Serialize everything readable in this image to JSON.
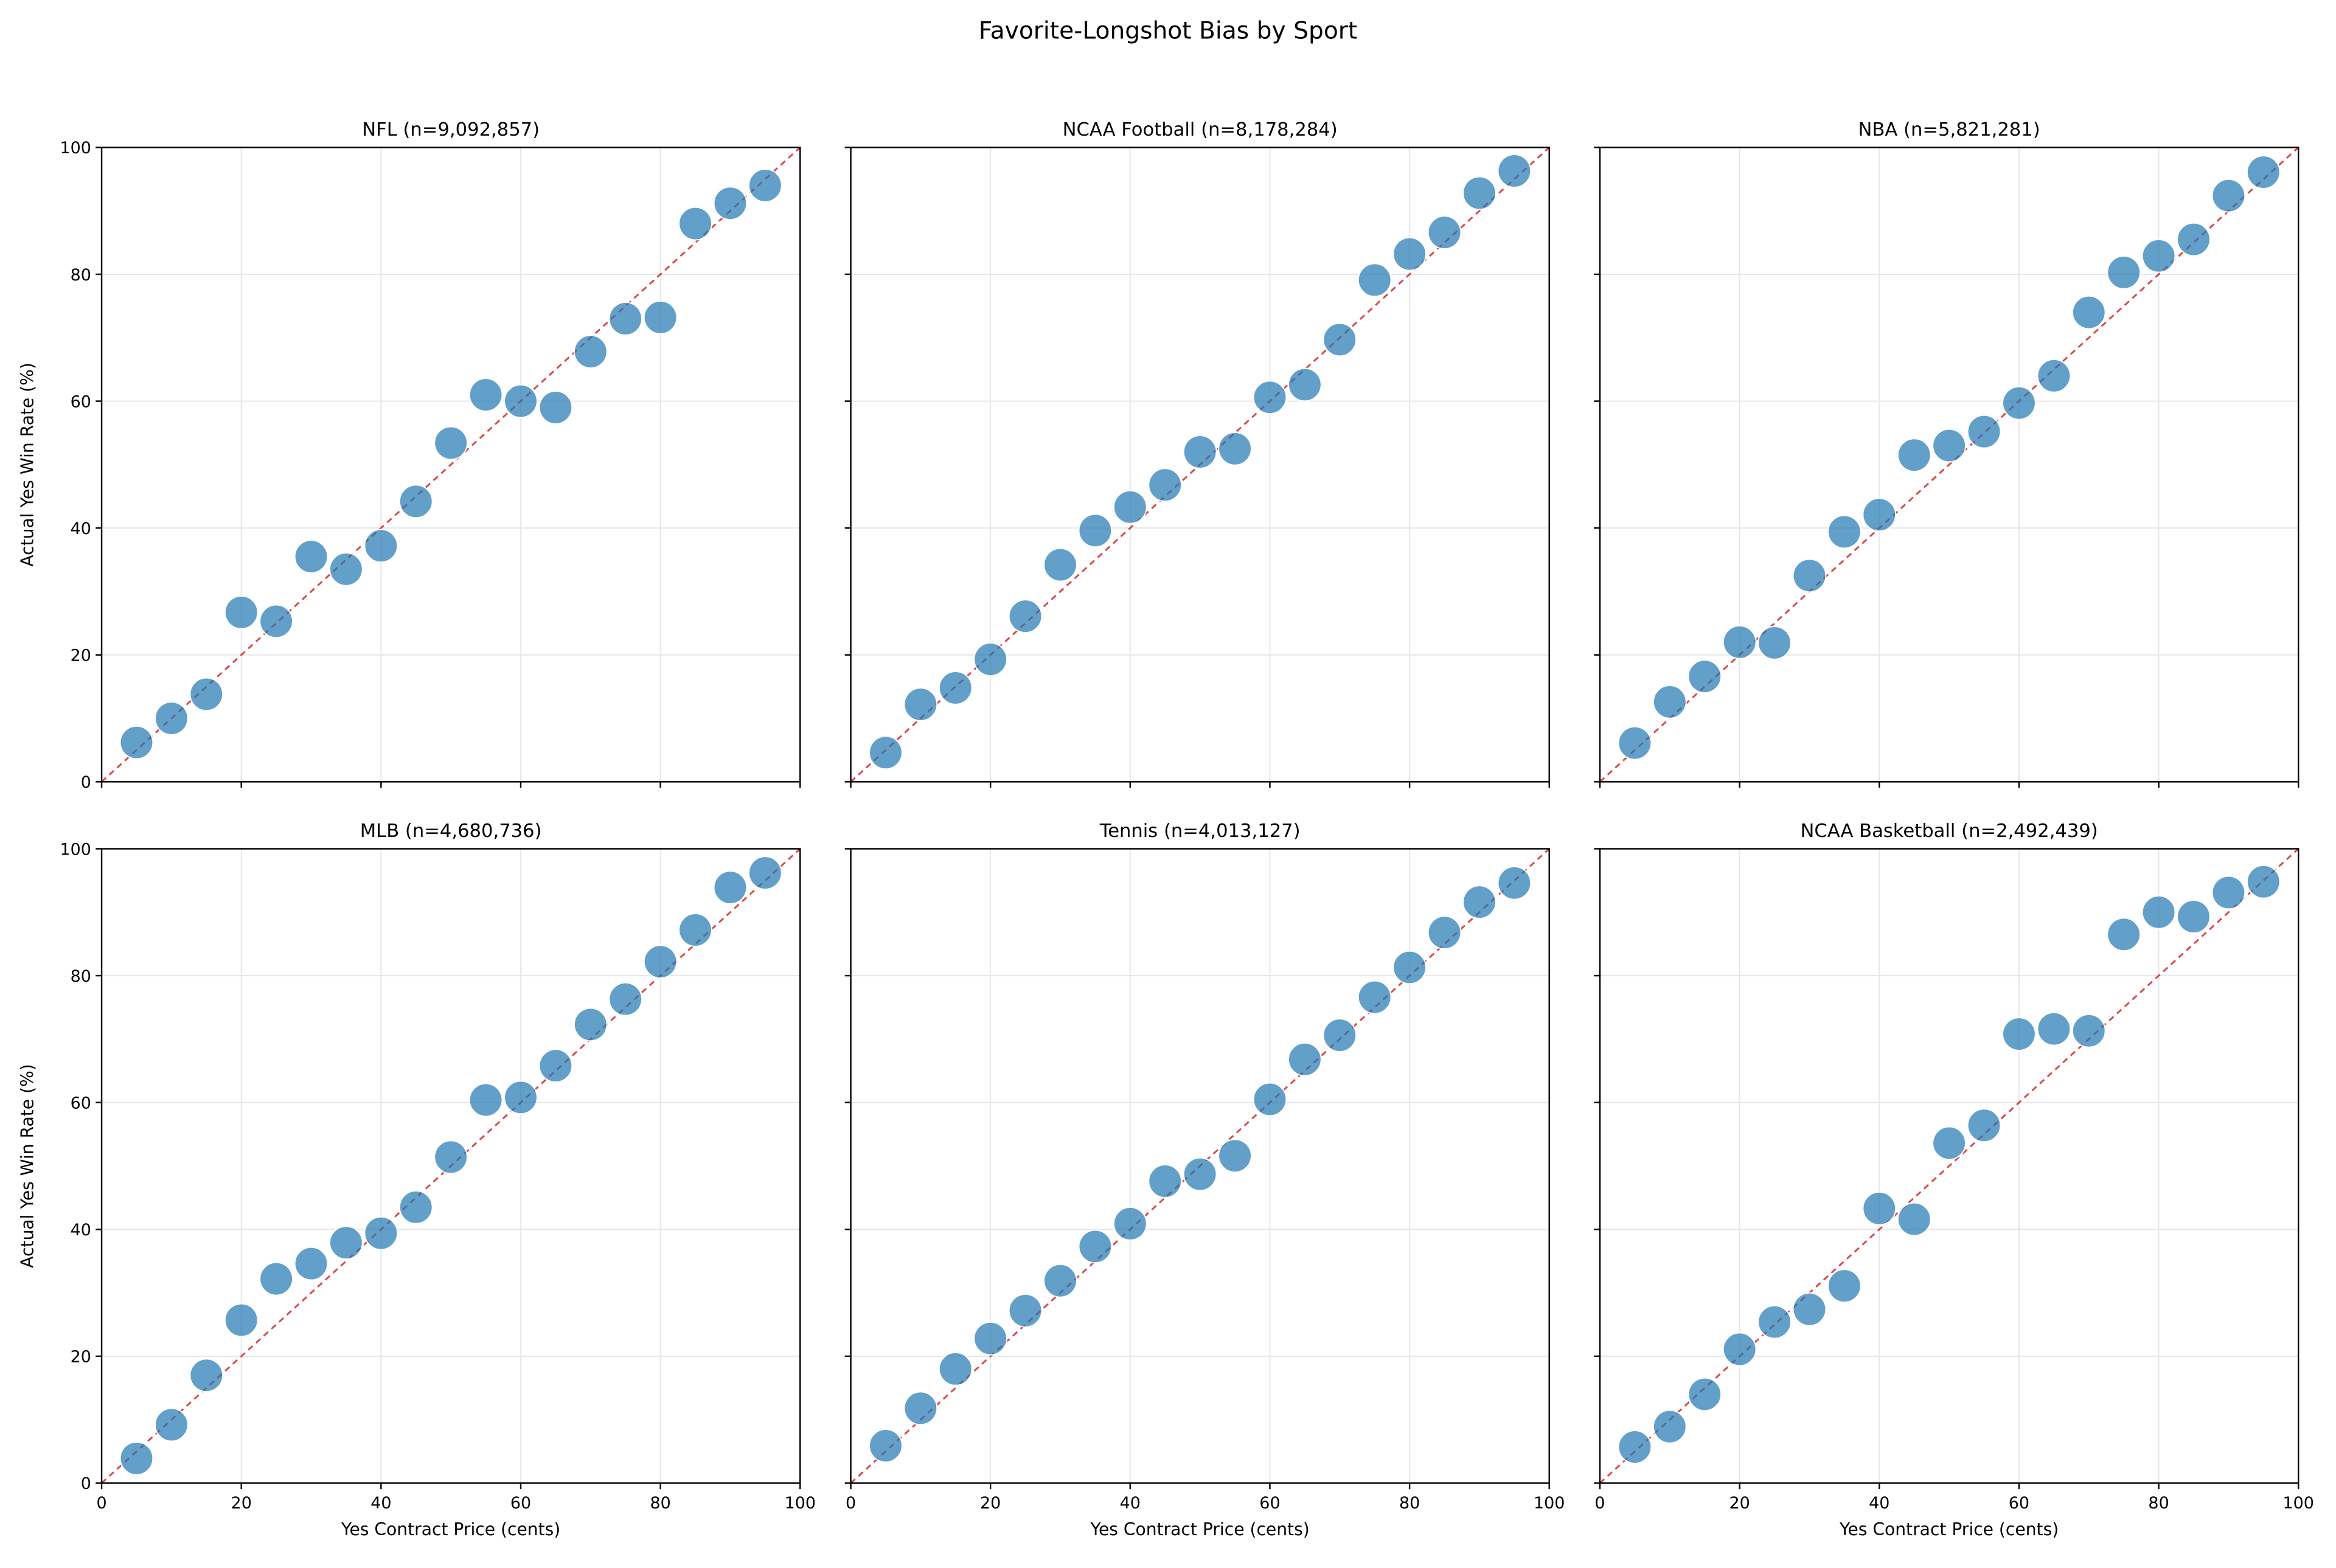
{
  "chart_data": {
    "title": "Favorite-Longshot Bias by Sport",
    "type": "scatter",
    "xlabel": "Yes Contract Price (cents)",
    "ylabel": "Actual Yes Win Rate (%)",
    "xlim": [
      0,
      100
    ],
    "ylim": [
      0,
      100
    ],
    "xticks": [
      0,
      20,
      40,
      60,
      80,
      100
    ],
    "yticks": [
      0,
      20,
      40,
      60,
      80,
      100
    ],
    "grid": true,
    "reference_line": "y = x (dashed)",
    "colors": {
      "points": "#1f77b4",
      "reference_line": "#d62728"
    },
    "x": [
      5,
      10,
      15,
      20,
      25,
      30,
      35,
      40,
      45,
      50,
      55,
      60,
      65,
      70,
      75,
      80,
      85,
      90,
      95
    ],
    "panels": [
      {
        "title": "NFL  (n=9,092,857)",
        "values": [
          6.2,
          10,
          13.8,
          26.7,
          25.3,
          35.5,
          33.5,
          37.2,
          44.2,
          53.4,
          61,
          60,
          59,
          67.8,
          73,
          73.2,
          88,
          91.2,
          94
        ]
      },
      {
        "title": "NCAA Football  (n=8,178,284)",
        "values": [
          4.6,
          12.2,
          14.8,
          19.3,
          26.1,
          34.2,
          39.6,
          43.3,
          46.8,
          52,
          52.5,
          60.6,
          62.6,
          69.7,
          79.1,
          83.2,
          86.6,
          92.8,
          96.3
        ]
      },
      {
        "title": "NBA  (n=5,821,281)",
        "values": [
          6.1,
          12.6,
          16.6,
          22,
          21.9,
          32.5,
          39.4,
          42.1,
          51.5,
          53,
          55.2,
          59.7,
          64,
          74,
          80.3,
          82.9,
          85.5,
          92.4,
          96.1
        ]
      },
      {
        "title": "MLB  (n=4,680,736)",
        "values": [
          3.9,
          9.2,
          17,
          25.7,
          32.2,
          34.6,
          37.9,
          39.4,
          43.5,
          51.4,
          60.4,
          60.8,
          65.8,
          72.3,
          76.3,
          82.2,
          87.2,
          93.9,
          96.2
        ]
      },
      {
        "title": "Tennis  (n=4,013,127)",
        "values": [
          5.9,
          11.8,
          18,
          22.8,
          27.2,
          31.9,
          37.3,
          40.9,
          47.6,
          48.7,
          51.6,
          60.5,
          66.8,
          70.6,
          76.6,
          81.3,
          86.8,
          91.6,
          94.6
        ]
      },
      {
        "title": "NCAA Basketball  (n=2,492,439)",
        "values": [
          5.7,
          8.9,
          14,
          21.1,
          25.4,
          27.4,
          31.1,
          43.3,
          41.6,
          53.6,
          56.4,
          70.8,
          71.6,
          71.3,
          86.5,
          90,
          89.3,
          93.1,
          94.8
        ]
      }
    ]
  }
}
